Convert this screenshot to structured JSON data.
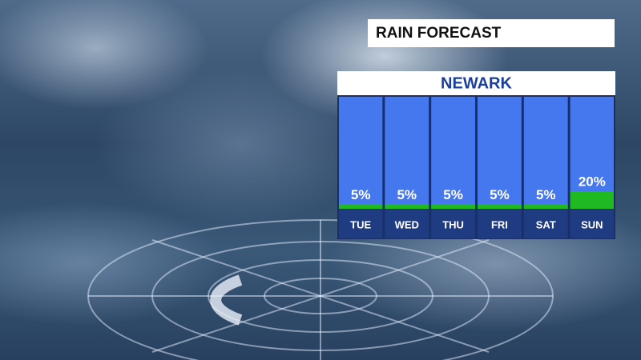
{
  "chart_data": {
    "type": "bar",
    "title": "RAIN FORECAST",
    "subtitle": "NEWARK",
    "categories": [
      "TUE",
      "WED",
      "THU",
      "FRI",
      "SAT",
      "SUN"
    ],
    "values": [
      5,
      5,
      5,
      5,
      5,
      20
    ],
    "value_labels": [
      "5%",
      "5%",
      "5%",
      "5%",
      "5%",
      "20%"
    ],
    "color": "#1fba22"
  }
}
